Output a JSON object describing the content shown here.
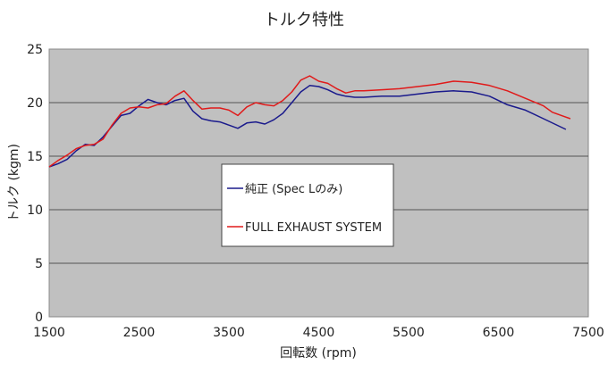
{
  "chart_data": {
    "type": "line",
    "title": "トルク特性",
    "xlabel": "回転数 (rpm)",
    "ylabel": "トルク (kgm)",
    "xlim": [
      1500,
      7500
    ],
    "ylim": [
      0,
      25
    ],
    "xticks": [
      1500,
      2500,
      3500,
      4500,
      5500,
      6500,
      7500
    ],
    "yticks": [
      0,
      5,
      10,
      15,
      20,
      25
    ],
    "grid": "horizontal",
    "legend": "center",
    "series": [
      {
        "name": "純正 (Spec Lのみ)",
        "color": "#1a1a8c",
        "x": [
          1500,
          1600,
          1700,
          1800,
          1900,
          2000,
          2100,
          2200,
          2300,
          2400,
          2500,
          2600,
          2700,
          2800,
          2900,
          3000,
          3100,
          3200,
          3300,
          3400,
          3500,
          3600,
          3700,
          3800,
          3900,
          4000,
          4100,
          4200,
          4300,
          4400,
          4500,
          4600,
          4700,
          4800,
          4900,
          5000,
          5200,
          5400,
          5600,
          5800,
          6000,
          6200,
          6400,
          6600,
          6800,
          7000,
          7250
        ],
        "y": [
          14.0,
          14.3,
          14.7,
          15.5,
          16.1,
          16.0,
          16.8,
          17.8,
          18.8,
          19.0,
          19.7,
          20.3,
          20.0,
          19.8,
          20.2,
          20.4,
          19.2,
          18.5,
          18.3,
          18.2,
          17.9,
          17.6,
          18.1,
          18.2,
          18.0,
          18.4,
          19.0,
          20.0,
          21.0,
          21.6,
          21.5,
          21.2,
          20.8,
          20.6,
          20.5,
          20.5,
          20.6,
          20.6,
          20.8,
          21.0,
          21.1,
          21.0,
          20.6,
          19.8,
          19.3,
          18.5,
          17.5
        ]
      },
      {
        "name": "FULL EXHAUST SYSTEM",
        "color": "#e01a1a",
        "x": [
          1500,
          1600,
          1700,
          1800,
          1900,
          2000,
          2100,
          2200,
          2300,
          2400,
          2500,
          2600,
          2700,
          2800,
          2900,
          3000,
          3100,
          3200,
          3300,
          3400,
          3500,
          3600,
          3700,
          3800,
          3900,
          4000,
          4100,
          4200,
          4300,
          4400,
          4500,
          4600,
          4700,
          4800,
          4900,
          5000,
          5200,
          5400,
          5600,
          5800,
          6000,
          6200,
          6400,
          6600,
          6800,
          7000,
          7100,
          7200,
          7300
        ],
        "y": [
          14.0,
          14.6,
          15.1,
          15.7,
          16.0,
          16.1,
          16.6,
          17.9,
          19.0,
          19.5,
          19.6,
          19.5,
          19.8,
          19.9,
          20.6,
          21.1,
          20.2,
          19.4,
          19.5,
          19.5,
          19.3,
          18.8,
          19.6,
          20.0,
          19.8,
          19.7,
          20.2,
          21.0,
          22.1,
          22.5,
          22.0,
          21.8,
          21.3,
          20.9,
          21.1,
          21.1,
          21.2,
          21.3,
          21.5,
          21.7,
          22.0,
          21.9,
          21.6,
          21.1,
          20.4,
          19.7,
          19.1,
          18.8,
          18.5
        ]
      }
    ]
  }
}
